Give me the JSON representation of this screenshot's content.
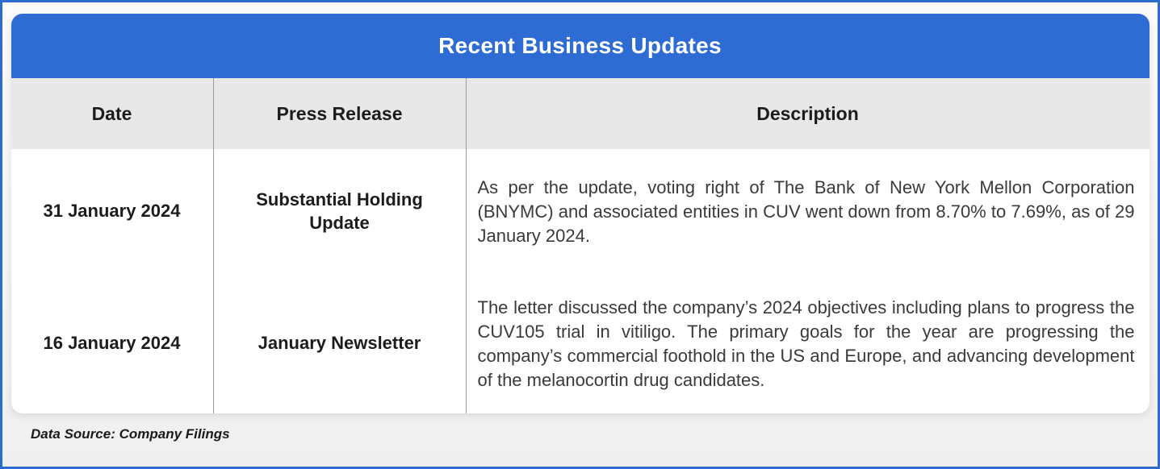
{
  "title": "Recent Business Updates",
  "table": {
    "columns": [
      "Date",
      "Press Release",
      "Description"
    ],
    "rows": [
      {
        "date": "31 January 2024",
        "press_release": "Substantial Holding Update",
        "description": "As per the update, voting right of The Bank of New York Mellon Corporation (BNYMC) and associated entities in CUV went down from 8.70% to 7.69%, as of 29 January 2024."
      },
      {
        "date": "16 January 2024",
        "press_release": "January Newsletter",
        "description": "The letter discussed the company’s 2024 objectives including plans to progress the CUV105 trial in vitiligo. The primary goals for the year are progressing the company’s commercial foothold in the US and Europe, and advancing development of the melanocortin drug candidates."
      }
    ]
  },
  "footer": {
    "data_source": "Data Source: Company Filings"
  },
  "colors": {
    "title_bar_blue": "#2E6BD3",
    "frame_border_blue": "#2D6BCF",
    "column_header_bg": "#E9E8E8",
    "divider_gray": "#9a9a9a",
    "body_bg": "#ffffff",
    "text_dark": "#1c1c1c"
  }
}
